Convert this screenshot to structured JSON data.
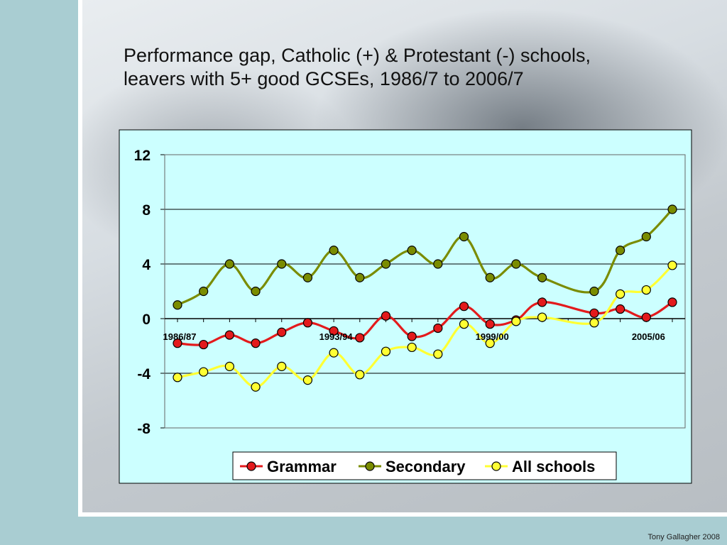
{
  "slide": {
    "title_line1": "Performance gap, Catholic (+) & Protestant (-) schools,",
    "title_line2": "leavers with 5+ good GCSEs, 1986/7 to 2006/7",
    "footer": "Tony Gallagher 2008"
  },
  "colors": {
    "plot_background": "#ccffff",
    "grammar": "#e31a1c",
    "secondary": "#7a8c00",
    "all_schools": "#ffff33"
  },
  "chart_data": {
    "type": "line",
    "title": "",
    "xlabel": "",
    "ylabel": "",
    "ylim": [
      -8,
      12
    ],
    "yticks": [
      "12",
      "8",
      "4",
      "0",
      "-4",
      "-8"
    ],
    "x_tick_labels": [
      "1986/87",
      "1993/94",
      "1999/00",
      "2005/06"
    ],
    "x_tick_positions": [
      0,
      6,
      12,
      18
    ],
    "grid": "horizontal",
    "legend_position": "bottom",
    "series": [
      {
        "name": "Grammar",
        "color": "#e31a1c",
        "points": [
          [
            0,
            -1.8
          ],
          [
            1,
            -1.9
          ],
          [
            2,
            -1.2
          ],
          [
            3,
            -1.8
          ],
          [
            4,
            -1.0
          ],
          [
            5,
            -0.3
          ],
          [
            6,
            -0.9
          ],
          [
            7,
            -1.4
          ],
          [
            8,
            0.2
          ],
          [
            9,
            -1.3
          ],
          [
            10,
            -0.7
          ],
          [
            11,
            0.9
          ],
          [
            12,
            -0.4
          ],
          [
            13,
            -0.1
          ],
          [
            14,
            1.2
          ],
          [
            16,
            0.4
          ],
          [
            17,
            0.7
          ],
          [
            18,
            0.1
          ],
          [
            19,
            1.2
          ]
        ]
      },
      {
        "name": "Secondary",
        "color": "#7a8c00",
        "points": [
          [
            0,
            1.0
          ],
          [
            1,
            2.0
          ],
          [
            2,
            4.0
          ],
          [
            3,
            2.0
          ],
          [
            4,
            4.0
          ],
          [
            5,
            3.0
          ],
          [
            6,
            5.0
          ],
          [
            7,
            3.0
          ],
          [
            8,
            4.0
          ],
          [
            9,
            5.0
          ],
          [
            10,
            4.0
          ],
          [
            11,
            6.0
          ],
          [
            12,
            3.0
          ],
          [
            13,
            4.0
          ],
          [
            14,
            3.0
          ],
          [
            16,
            2.0
          ],
          [
            17,
            5.0
          ],
          [
            18,
            6.0
          ],
          [
            19,
            8.0
          ]
        ]
      },
      {
        "name": "All schools",
        "color": "#ffff33",
        "points": [
          [
            0,
            -4.3
          ],
          [
            1,
            -3.9
          ],
          [
            2,
            -3.5
          ],
          [
            3,
            -5.0
          ],
          [
            4,
            -3.5
          ],
          [
            5,
            -4.5
          ],
          [
            6,
            -2.5
          ],
          [
            7,
            -4.1
          ],
          [
            8,
            -2.4
          ],
          [
            9,
            -2.1
          ],
          [
            10,
            -2.6
          ],
          [
            11,
            -0.4
          ],
          [
            12,
            -1.8
          ],
          [
            13,
            -0.2
          ],
          [
            14,
            0.1
          ],
          [
            16,
            -0.3
          ],
          [
            17,
            1.8
          ],
          [
            18,
            2.1
          ],
          [
            19,
            3.9
          ]
        ]
      }
    ]
  }
}
